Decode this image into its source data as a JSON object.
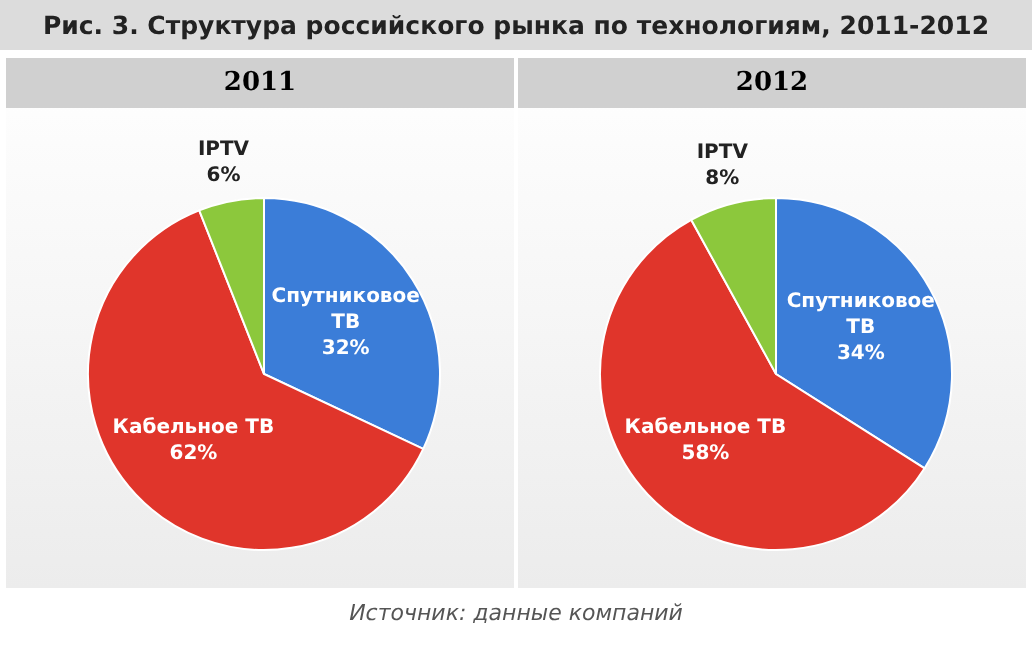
{
  "chart_data": [
    {
      "type": "pie",
      "title": "Рис. 3. Структура российского рынка по технологиям, 2011-2012",
      "subtitle": "2011",
      "categories": [
        "Спутниковое ТВ",
        "Кабельное ТВ",
        "IPTV"
      ],
      "values": [
        32,
        62,
        6
      ],
      "value_labels": [
        "32%",
        "62%",
        "6%"
      ],
      "colors": [
        "#3b7dd8",
        "#e0352b",
        "#8cc83c"
      ]
    },
    {
      "type": "pie",
      "subtitle": "2012",
      "categories": [
        "Спутниковое ТВ",
        "Кабельное ТВ",
        "IPTV"
      ],
      "values": [
        34,
        58,
        8
      ],
      "value_labels": [
        "34%",
        "58%",
        "8%"
      ],
      "colors": [
        "#3b7dd8",
        "#e0352b",
        "#8cc83c"
      ],
      "annotations": [
        "Источник: данные компаний"
      ]
    }
  ]
}
